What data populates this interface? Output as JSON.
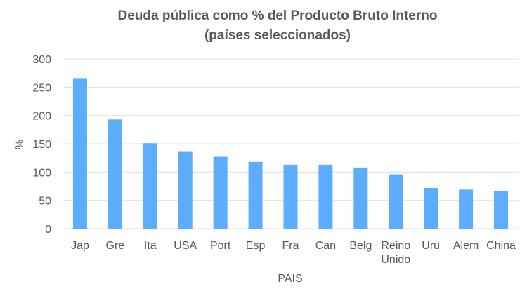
{
  "chart_data": {
    "type": "bar",
    "title": [
      "Deuda pública como % del Producto Bruto Interno",
      "(países seleccionados)"
    ],
    "xlabel": "PAIS",
    "ylabel": "%",
    "categories": [
      "Jap",
      "Gre",
      "Ita",
      "USA",
      "Port",
      "Esp",
      "Fra",
      "Can",
      "Belg",
      "Reino Unido",
      "Uru",
      "Alem",
      "China"
    ],
    "values": [
      266,
      193,
      151,
      137,
      127,
      118,
      113,
      113,
      108,
      96,
      72,
      69,
      67
    ],
    "ylim": [
      0,
      300
    ],
    "yticks": [
      0,
      50,
      100,
      150,
      200,
      250,
      300
    ],
    "grid": true,
    "bar_color": "#5DADFF",
    "grid_color": "#E6E6E6",
    "text_color": "#595959"
  }
}
